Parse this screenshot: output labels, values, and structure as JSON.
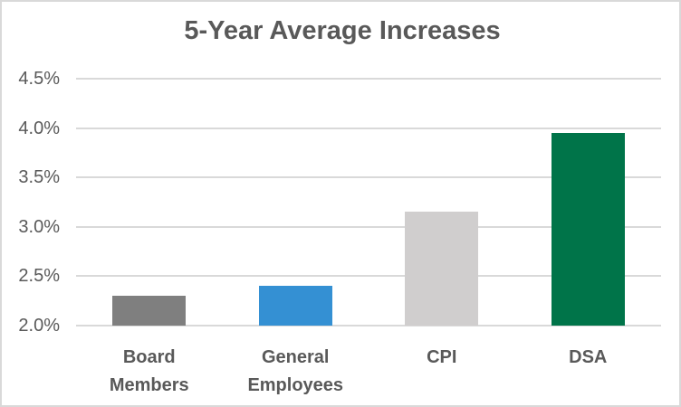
{
  "chart_data": {
    "type": "bar",
    "title": "5-Year Average Increases",
    "categories": [
      "Board Members",
      "General Employees",
      "CPI",
      "DSA"
    ],
    "values": [
      2.3,
      2.4,
      3.15,
      3.95
    ],
    "unit": "%",
    "xlabel": "",
    "ylabel": "",
    "ylim": [
      2.0,
      4.5
    ],
    "y_tick_step": 0.5,
    "y_ticks": [
      {
        "value": 4.5,
        "label": "4.5%"
      },
      {
        "value": 4.0,
        "label": "4.0%"
      },
      {
        "value": 3.5,
        "label": "3.5%"
      },
      {
        "value": 3.0,
        "label": "3.0%"
      },
      {
        "value": 2.5,
        "label": "2.5%"
      },
      {
        "value": 2.0,
        "label": "2.0%"
      }
    ],
    "grid": true,
    "legend": "none",
    "bar_colors": [
      "#7F7F7F",
      "#3490D3",
      "#D0CECE",
      "#007449"
    ],
    "colors": {
      "title_text": "#595959",
      "axis_text": "#595959",
      "gridline": "#D9D9D9",
      "border": "#D9D9D9",
      "background": "#FFFFFF"
    }
  }
}
